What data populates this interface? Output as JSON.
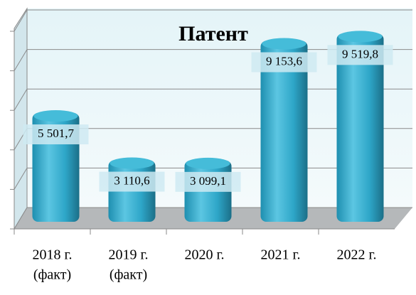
{
  "chart_data": {
    "type": "bar",
    "title": "Патент",
    "categories": [
      [
        "2018 г.",
        "(факт)"
      ],
      [
        "2019 г.",
        "(факт)"
      ],
      [
        "2020 г."
      ],
      [
        "2021 г."
      ],
      [
        "2022 г."
      ]
    ],
    "values": [
      5501.7,
      3110.6,
      3099.1,
      9153.6,
      9519.8
    ],
    "value_labels": [
      "5 501,7",
      "3 110,6",
      "3 099,1",
      "9 153,6",
      "9 519,8"
    ],
    "color": "#2ea6c8",
    "ylim": [
      0,
      10000
    ],
    "yticks": [
      0,
      2000,
      4000,
      6000,
      8000,
      10000
    ],
    "grid": true
  }
}
